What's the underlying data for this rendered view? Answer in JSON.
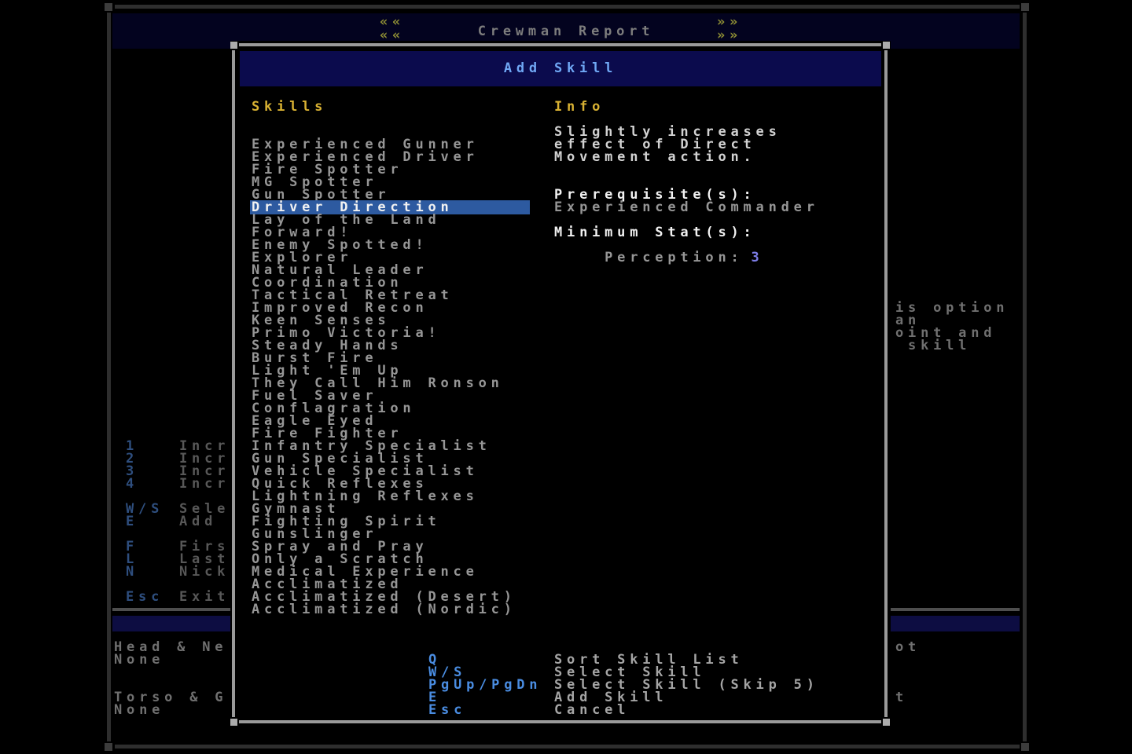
{
  "background": {
    "title_bar": {
      "decor_left": "««",
      "decor_right": "»»",
      "title": "Crewman Report"
    },
    "left_commands": [
      [
        {
          "key": "1",
          "label": "Incr"
        },
        {
          "key": "2",
          "label": "Incr"
        },
        {
          "key": "3",
          "label": "Incr"
        },
        {
          "key": "4",
          "label": "Incr"
        }
      ],
      [
        {
          "key": "W/S",
          "label": "Sele"
        },
        {
          "key": "E",
          "label": "Add"
        }
      ],
      [
        {
          "key": "F",
          "label": "Firs"
        },
        {
          "key": "L",
          "label": "Last"
        },
        {
          "key": "N",
          "label": "Nick"
        }
      ],
      [
        {
          "key": "Esc",
          "label": "Exit"
        }
      ]
    ],
    "armor_slots": [
      {
        "label": "Head & Ne",
        "value": "None"
      },
      {
        "label": "Torso & G",
        "value": "None"
      }
    ],
    "right_fragments": [
      "is option",
      "an",
      "oint and",
      " skill"
    ],
    "right_bottom_fragments": [
      "ot",
      "t"
    ]
  },
  "modal": {
    "title": "Add Skill",
    "skills_header": "Skills",
    "info_header": "Info",
    "selected_index": 5,
    "selected_skill": "Driver Direction",
    "skills": [
      "Experienced Gunner",
      "Experienced Driver",
      "Fire Spotter",
      "MG Spotter",
      "Gun Spotter",
      "Driver Direction",
      "Lay of the Land",
      "Forward!",
      "Enemy Spotted!",
      "Explorer",
      "Natural Leader",
      "Coordination",
      "Tactical Retreat",
      "Improved Recon",
      "Keen Senses",
      "Primo Victoria!",
      "Steady Hands",
      "Burst Fire",
      "Light 'Em Up",
      "They Call Him Ronson",
      "Fuel Saver",
      "Conflagration",
      "Eagle Eyed",
      "Fire Fighter",
      "Infantry Specialist",
      "Gun Specialist",
      "Vehicle Specialist",
      "Quick Reflexes",
      "Lightning Reflexes",
      "Gymnast",
      "Fighting Spirit",
      "Gunslinger",
      "Spray and Pray",
      "Only a Scratch",
      "Medical Experience",
      "Acclimatized",
      "Acclimatized (Desert)",
      "Acclimatized (Nordic)"
    ],
    "info": {
      "description": [
        "Slightly increases",
        "effect of Direct",
        "Movement action."
      ],
      "prerequisites_label": "Prerequisite(s):",
      "prerequisites": "Experienced Commander",
      "min_stats_label": "Minimum Stat(s):",
      "min_stat_name": "Perception:",
      "min_stat_value": "3"
    },
    "commands": [
      {
        "key": "Q",
        "label": "Sort Skill List"
      },
      {
        "key": "W/S",
        "label": "Select Skill"
      },
      {
        "key": "PgUp/PgDn",
        "label": "Select Skill (Skip 5)"
      },
      {
        "key": "E",
        "label": "Add Skill"
      },
      {
        "key": "Esc",
        "label": "Cancel"
      }
    ]
  },
  "colors": {
    "modal_title_text": "#70a8f5",
    "modal_title_bar": "#0b0b4d",
    "header_gold": "#d9b233",
    "selected_row_bg": "#2d5aa0",
    "command_key_blue": "#4a8de2",
    "stat_value_blue": "#7d7de6",
    "decor_olive": "#8f8f35",
    "skill_text_gray": "#969696"
  }
}
